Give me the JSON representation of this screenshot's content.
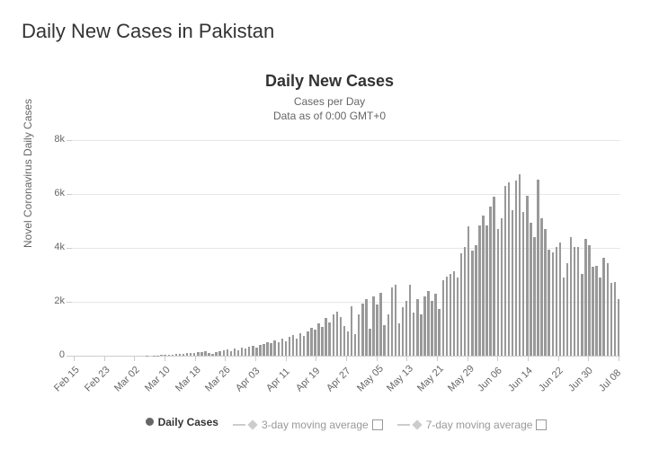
{
  "page": {
    "heading": "Daily New Cases in Pakistan"
  },
  "chart": {
    "type": "bar",
    "title": "Daily New Cases",
    "subtitle_line1": "Cases per Day",
    "subtitle_line2": "Data as of 0:00 GMT+0",
    "y_axis_label": "Novel Coronavirus Daily Cases",
    "ylim": [
      0,
      8000
    ],
    "y_ticks": [
      {
        "value": 0,
        "label": "0"
      },
      {
        "value": 2000,
        "label": "2k"
      },
      {
        "value": 4000,
        "label": "4k"
      },
      {
        "value": 6000,
        "label": "6k"
      },
      {
        "value": 8000,
        "label": "8k"
      }
    ],
    "x_tick_labels": [
      "Feb 15",
      "Feb 23",
      "Mar 02",
      "Mar 10",
      "Mar 18",
      "Mar 26",
      "Apr 03",
      "Apr 11",
      "Apr 19",
      "Apr 27",
      "May 05",
      "May 13",
      "May 21",
      "May 29",
      "Jun 06",
      "Jun 14",
      "Jun 22",
      "Jun 30",
      "Jul 08"
    ],
    "bar_color": "#999999",
    "grid_color": "#e6e6e6",
    "background_color": "#ffffff",
    "axis_label_color": "#666666",
    "values": [
      0,
      0,
      0,
      0,
      0,
      0,
      0,
      0,
      0,
      0,
      0,
      0,
      0,
      0,
      0,
      0,
      0,
      0,
      0,
      0,
      5,
      2,
      10,
      12,
      18,
      26,
      33,
      40,
      62,
      58,
      70,
      85,
      115,
      98,
      130,
      145,
      160,
      102,
      55,
      120,
      180,
      210,
      235,
      180,
      260,
      200,
      310,
      255,
      340,
      380,
      305,
      415,
      450,
      510,
      480,
      560,
      495,
      620,
      540,
      700,
      780,
      620,
      850,
      720,
      900,
      1050,
      960,
      1200,
      1080,
      1400,
      1250,
      1550,
      1650,
      1450,
      1100,
      900,
      1850,
      800,
      1550,
      1950,
      2100,
      1000,
      2200,
      1900,
      2350,
      1150,
      1550,
      2550,
      2650,
      1200,
      1800,
      2050,
      2650,
      1600,
      2100,
      1550,
      2200,
      2400,
      2050,
      2300,
      1750,
      2800,
      2950,
      3050,
      3150,
      2900,
      3800,
      4050,
      4800,
      3900,
      4100,
      4850,
      5200,
      4850,
      5550,
      5900,
      4700,
      5100,
      6300,
      6450,
      5400,
      6500,
      6750,
      5350,
      5950,
      4950,
      4400,
      6550,
      5100,
      4700,
      3950,
      3850,
      4050,
      4200,
      2900,
      3450,
      4400,
      4050,
      4050,
      3050,
      4350,
      4100,
      3300,
      3350,
      2900,
      3650,
      3450,
      2700,
      2750,
      2100
    ]
  },
  "legend": {
    "items": [
      {
        "label": "Daily Cases",
        "active": true,
        "marker": "circle",
        "color": "#666666"
      },
      {
        "label": "3-day moving average",
        "active": false,
        "marker": "line-diamond",
        "color": "#cccccc",
        "checkbox": true
      },
      {
        "label": "7-day moving average",
        "active": false,
        "marker": "line-diamond",
        "color": "#cccccc",
        "checkbox": true
      }
    ]
  }
}
